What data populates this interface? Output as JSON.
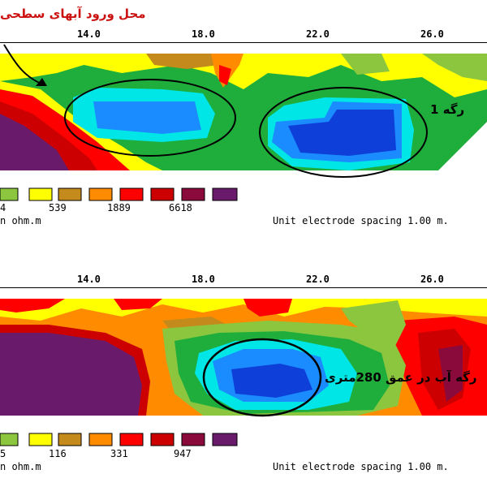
{
  "top_panel": {
    "x_ticks": [
      "14.0",
      "18.0",
      "22.0",
      "26.0"
    ],
    "annotation_inflow": "محل ورود آبهای سطحی",
    "annotation_vein": "رگه 1",
    "legend_values": [
      "4",
      "539",
      "1889",
      "6618"
    ],
    "unit_text": "n ohm.m",
    "footer_text": "Unit electrode spacing 1.00 m.",
    "colors": [
      "#8cc63f",
      "#ffff00",
      "#c48a1c",
      "#ff8c00",
      "#ff0000",
      "#cc0000",
      "#8b0a3c",
      "#6a1a6a"
    ]
  },
  "bottom_panel": {
    "x_ticks": [
      "14.0",
      "18.0",
      "22.0",
      "26.0"
    ],
    "annotation_vein": "رگه آب در عمق 280متری",
    "legend_values": [
      "5",
      "116",
      "331",
      "947"
    ],
    "unit_text": "n ohm.m",
    "footer_text": "Unit electrode spacing 1.00 m.",
    "colors": [
      "#8cc63f",
      "#ffff00",
      "#c48a1c",
      "#ff8c00",
      "#ff0000",
      "#cc0000",
      "#8b0a3c",
      "#6a1a6a"
    ]
  }
}
